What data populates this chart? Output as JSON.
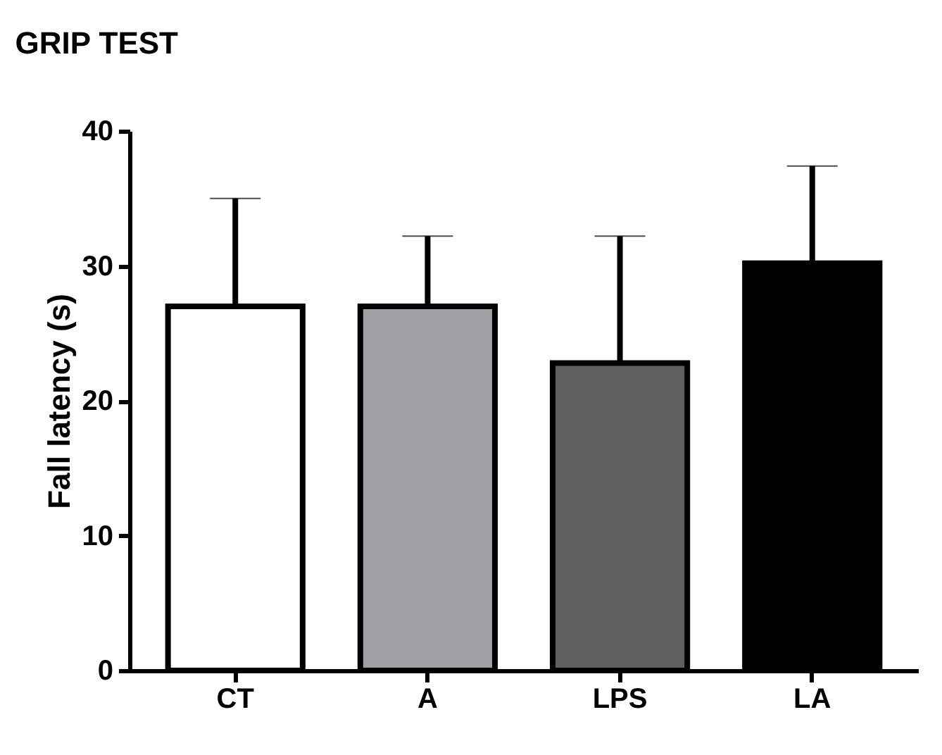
{
  "chart_data": {
    "type": "bar",
    "title": "GRIP TEST",
    "ylabel": "Fall latency (s)",
    "categories": [
      "CT",
      "A",
      "LPS",
      "LA"
    ],
    "values": [
      27,
      27,
      22.8,
      30.2
    ],
    "colors": [
      "#ffffff",
      "#a0a0a4",
      "#606060",
      "#000000"
    ],
    "errors": [
      [
        27,
        35
      ],
      [
        27,
        32.2
      ],
      [
        22.8,
        32.2
      ],
      [
        30.2,
        37.4
      ]
    ],
    "ylim": [
      0,
      40
    ],
    "yticks": [
      0,
      10,
      20,
      30,
      40
    ],
    "grid": false
  }
}
